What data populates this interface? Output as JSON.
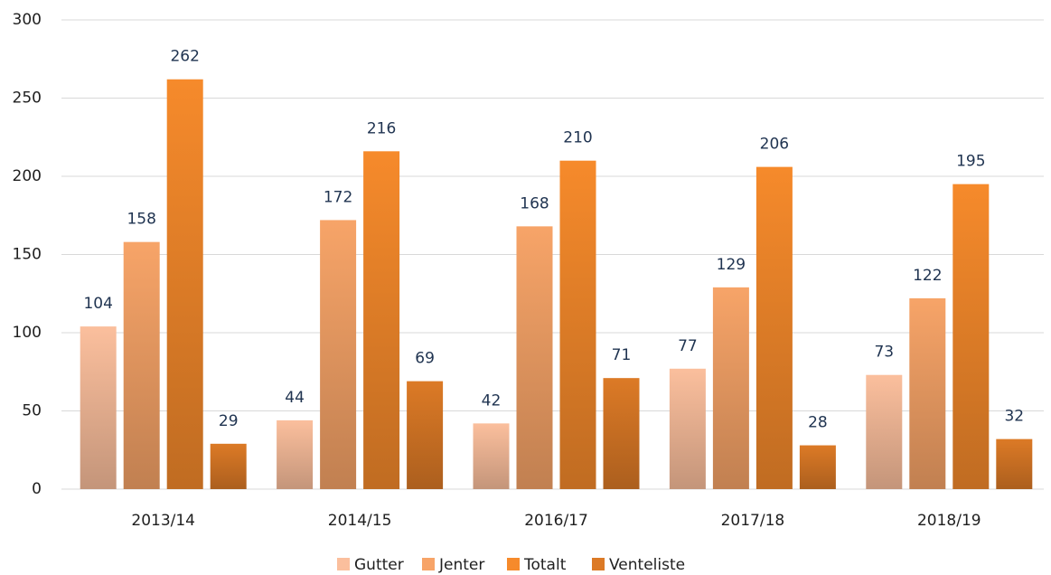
{
  "chart_data": {
    "type": "bar",
    "categories": [
      "2013/14",
      "2014/15",
      "2016/17",
      "2017/18",
      "2018/19"
    ],
    "series": [
      {
        "name": "Gutter",
        "color": "#fbbf9d",
        "values": [
          104,
          44,
          42,
          77,
          73
        ]
      },
      {
        "name": "Jenter",
        "color": "#f7a468",
        "values": [
          158,
          172,
          168,
          129,
          122
        ]
      },
      {
        "name": "Totalt",
        "color": "#f68a2b",
        "values": [
          262,
          216,
          210,
          206,
          195
        ]
      },
      {
        "name": "Venteliste",
        "color": "#dc7a26",
        "values": [
          29,
          69,
          71,
          28,
          32
        ]
      }
    ],
    "ylim": [
      0,
      300
    ],
    "yticks": [
      0,
      50,
      100,
      150,
      200,
      250,
      300
    ],
    "grid": true,
    "legend": "bottom"
  }
}
